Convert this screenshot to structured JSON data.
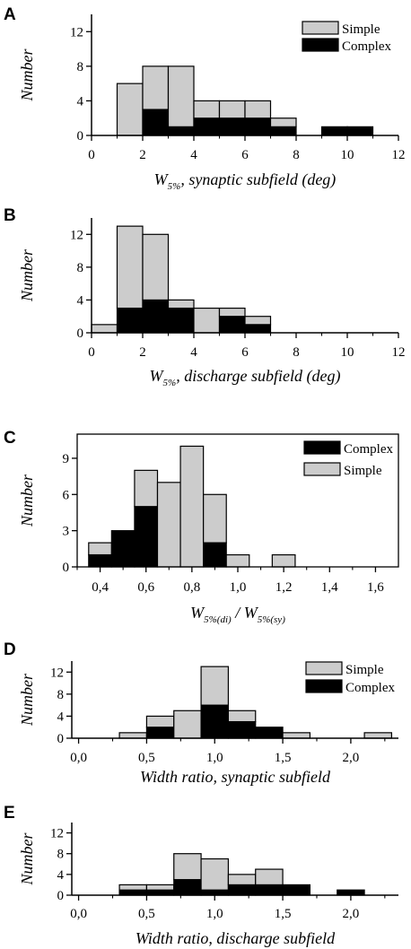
{
  "colors": {
    "simple": "#cccccc",
    "complex": "#000000",
    "axis": "#000000"
  },
  "chart_data": [
    {
      "type": "bar",
      "subtype": "stacked-histogram",
      "panel": "A",
      "xlabel": {
        "main": "W",
        "sub": "5%",
        "rest": ", synaptic subfield (deg)"
      },
      "ylabel": "Number",
      "xlim": [
        0,
        12
      ],
      "ylim": [
        0,
        14
      ],
      "xticks": [
        0,
        2,
        4,
        6,
        8,
        10,
        12
      ],
      "xtick_labels": [
        "0",
        "2",
        "4",
        "6",
        "8",
        "10",
        "12"
      ],
      "yticks": [
        0,
        4,
        8,
        12
      ],
      "ytick_labels": [
        "0",
        "4",
        "8",
        "12"
      ],
      "minor_xticks": true,
      "stack_order": [
        "Complex",
        "Simple"
      ],
      "bin_edges": [
        1,
        2,
        3,
        4,
        5,
        6,
        7,
        8,
        9,
        10,
        11
      ],
      "series": [
        {
          "name": "Simple",
          "values": [
            6,
            5,
            7,
            2,
            2,
            2,
            1,
            0,
            0,
            0
          ]
        },
        {
          "name": "Complex",
          "values": [
            0,
            3,
            1,
            2,
            2,
            2,
            1,
            0,
            1,
            1
          ]
        }
      ],
      "totals": [
        6,
        8,
        8,
        4,
        4,
        4,
        2,
        0,
        1,
        1
      ],
      "legend": {
        "position": "top-right",
        "entries": [
          "Simple",
          "Complex"
        ]
      },
      "grid": false
    },
    {
      "type": "bar",
      "subtype": "stacked-histogram",
      "panel": "B",
      "xlabel": {
        "main": "W",
        "sub": "5%",
        "rest": ", discharge subfield (deg)"
      },
      "ylabel": "Number",
      "xlim": [
        0,
        12
      ],
      "ylim": [
        0,
        14
      ],
      "xticks": [
        0,
        2,
        4,
        6,
        8,
        10,
        12
      ],
      "xtick_labels": [
        "0",
        "2",
        "4",
        "6",
        "8",
        "10",
        "12"
      ],
      "yticks": [
        0,
        4,
        8,
        12
      ],
      "ytick_labels": [
        "0",
        "4",
        "8",
        "12"
      ],
      "minor_xticks": true,
      "stack_order": [
        "Complex",
        "Simple"
      ],
      "bin_edges": [
        0,
        1,
        2,
        3,
        4,
        5,
        6,
        7
      ],
      "series": [
        {
          "name": "Simple",
          "values": [
            1,
            10,
            8,
            1,
            3,
            1,
            1
          ]
        },
        {
          "name": "Complex",
          "values": [
            0,
            3,
            4,
            3,
            0,
            2,
            1
          ]
        }
      ],
      "totals": [
        1,
        13,
        12,
        4,
        3,
        3,
        2
      ],
      "legend": null,
      "grid": false
    },
    {
      "type": "bar",
      "subtype": "stacked-histogram",
      "panel": "C",
      "xlabel": {
        "main": "W",
        "sub": "5%(di)",
        "rest": " / ",
        "main2": "W",
        "sub2": "5%(sy)"
      },
      "ylabel": "Number",
      "xlim": [
        0.3,
        1.7
      ],
      "ylim": [
        0,
        11
      ],
      "xticks": [
        0.4,
        0.6,
        0.8,
        1.0,
        1.2,
        1.4,
        1.6
      ],
      "xtick_labels": [
        "0,4",
        "0,6",
        "0,8",
        "1,0",
        "1,2",
        "1,4",
        "1,6"
      ],
      "yticks": [
        0,
        3,
        6,
        9
      ],
      "ytick_labels": [
        "0",
        "3",
        "6",
        "9"
      ],
      "minor_xticks": true,
      "stack_order": [
        "Complex",
        "Simple"
      ],
      "bin_edges": [
        0.35,
        0.45,
        0.55,
        0.65,
        0.75,
        0.85,
        0.95,
        1.05,
        1.15,
        1.25
      ],
      "series": [
        {
          "name": "Complex",
          "values": [
            1,
            3,
            5,
            0,
            0,
            2,
            0,
            0,
            0
          ]
        },
        {
          "name": "Simple",
          "values": [
            1,
            0,
            3,
            7,
            10,
            4,
            1,
            0,
            1
          ]
        }
      ],
      "totals": [
        2,
        3,
        8,
        7,
        10,
        6,
        1,
        0,
        1
      ],
      "legend": {
        "position": "top-right",
        "entries": [
          "Complex",
          "Simple"
        ]
      },
      "grid": false
    },
    {
      "type": "bar",
      "subtype": "stacked-histogram",
      "panel": "D",
      "xlabel": {
        "main": "Width ratio, synaptic subfield"
      },
      "ylabel": "Number",
      "xlim": [
        -0.05,
        2.35
      ],
      "ylim": [
        0,
        14
      ],
      "xticks": [
        0.0,
        0.5,
        1.0,
        1.5,
        2.0
      ],
      "xtick_labels": [
        "0,0",
        "0,5",
        "1,0",
        "1,5",
        "2,0"
      ],
      "yticks": [
        0,
        4,
        8,
        12
      ],
      "ytick_labels": [
        "0",
        "4",
        "8",
        "12"
      ],
      "minor_xticks": true,
      "stack_order": [
        "Complex",
        "Simple"
      ],
      "bin_edges": [
        0.3,
        0.5,
        0.7,
        0.9,
        1.1,
        1.3,
        1.5,
        1.7,
        1.9,
        2.1,
        2.3
      ],
      "series": [
        {
          "name": "Simple",
          "values": [
            1,
            2,
            5,
            7,
            2,
            0,
            1,
            0,
            0,
            1
          ]
        },
        {
          "name": "Complex",
          "values": [
            0,
            2,
            0,
            6,
            3,
            2,
            0,
            0,
            0,
            0
          ]
        }
      ],
      "totals": [
        1,
        4,
        5,
        13,
        5,
        2,
        1,
        0,
        0,
        1
      ],
      "legend": {
        "position": "top-right",
        "entries": [
          "Simple",
          "Complex"
        ]
      },
      "grid": false
    },
    {
      "type": "bar",
      "subtype": "stacked-histogram",
      "panel": "E",
      "xlabel": {
        "main": "Width ratio, discharge subfield"
      },
      "ylabel": "Number",
      "xlim": [
        -0.05,
        2.35
      ],
      "ylim": [
        0,
        14
      ],
      "xticks": [
        0.0,
        0.5,
        1.0,
        1.5,
        2.0
      ],
      "xtick_labels": [
        "0,0",
        "0,5",
        "1,0",
        "1,5",
        "2,0"
      ],
      "yticks": [
        0,
        4,
        8,
        12
      ],
      "ytick_labels": [
        "0",
        "4",
        "8",
        "12"
      ],
      "minor_xticks": true,
      "stack_order": [
        "Complex",
        "Simple"
      ],
      "bin_edges": [
        0.3,
        0.5,
        0.7,
        0.9,
        1.1,
        1.3,
        1.5,
        1.7,
        1.9,
        2.1
      ],
      "series": [
        {
          "name": "Simple",
          "values": [
            1,
            1,
            5,
            6,
            2,
            3,
            0,
            0,
            0
          ]
        },
        {
          "name": "Complex",
          "values": [
            1,
            1,
            3,
            1,
            2,
            2,
            2,
            0,
            1
          ]
        }
      ],
      "totals": [
        2,
        2,
        8,
        7,
        4,
        5,
        2,
        0,
        1
      ],
      "legend": null,
      "grid": false
    }
  ]
}
